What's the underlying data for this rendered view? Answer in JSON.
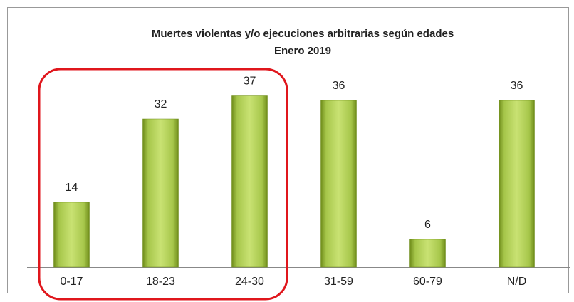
{
  "chart_data": {
    "type": "bar",
    "title": "Muertes violentas y/o ejecuciones arbitrarias según edades",
    "subtitle": "Enero 2019",
    "categories": [
      "0-17",
      "18-23",
      "24-30",
      "31-59",
      "60-79",
      "N/D"
    ],
    "values": [
      14,
      32,
      37,
      36,
      6,
      36
    ],
    "color": "#9bbb3b"
  }
}
